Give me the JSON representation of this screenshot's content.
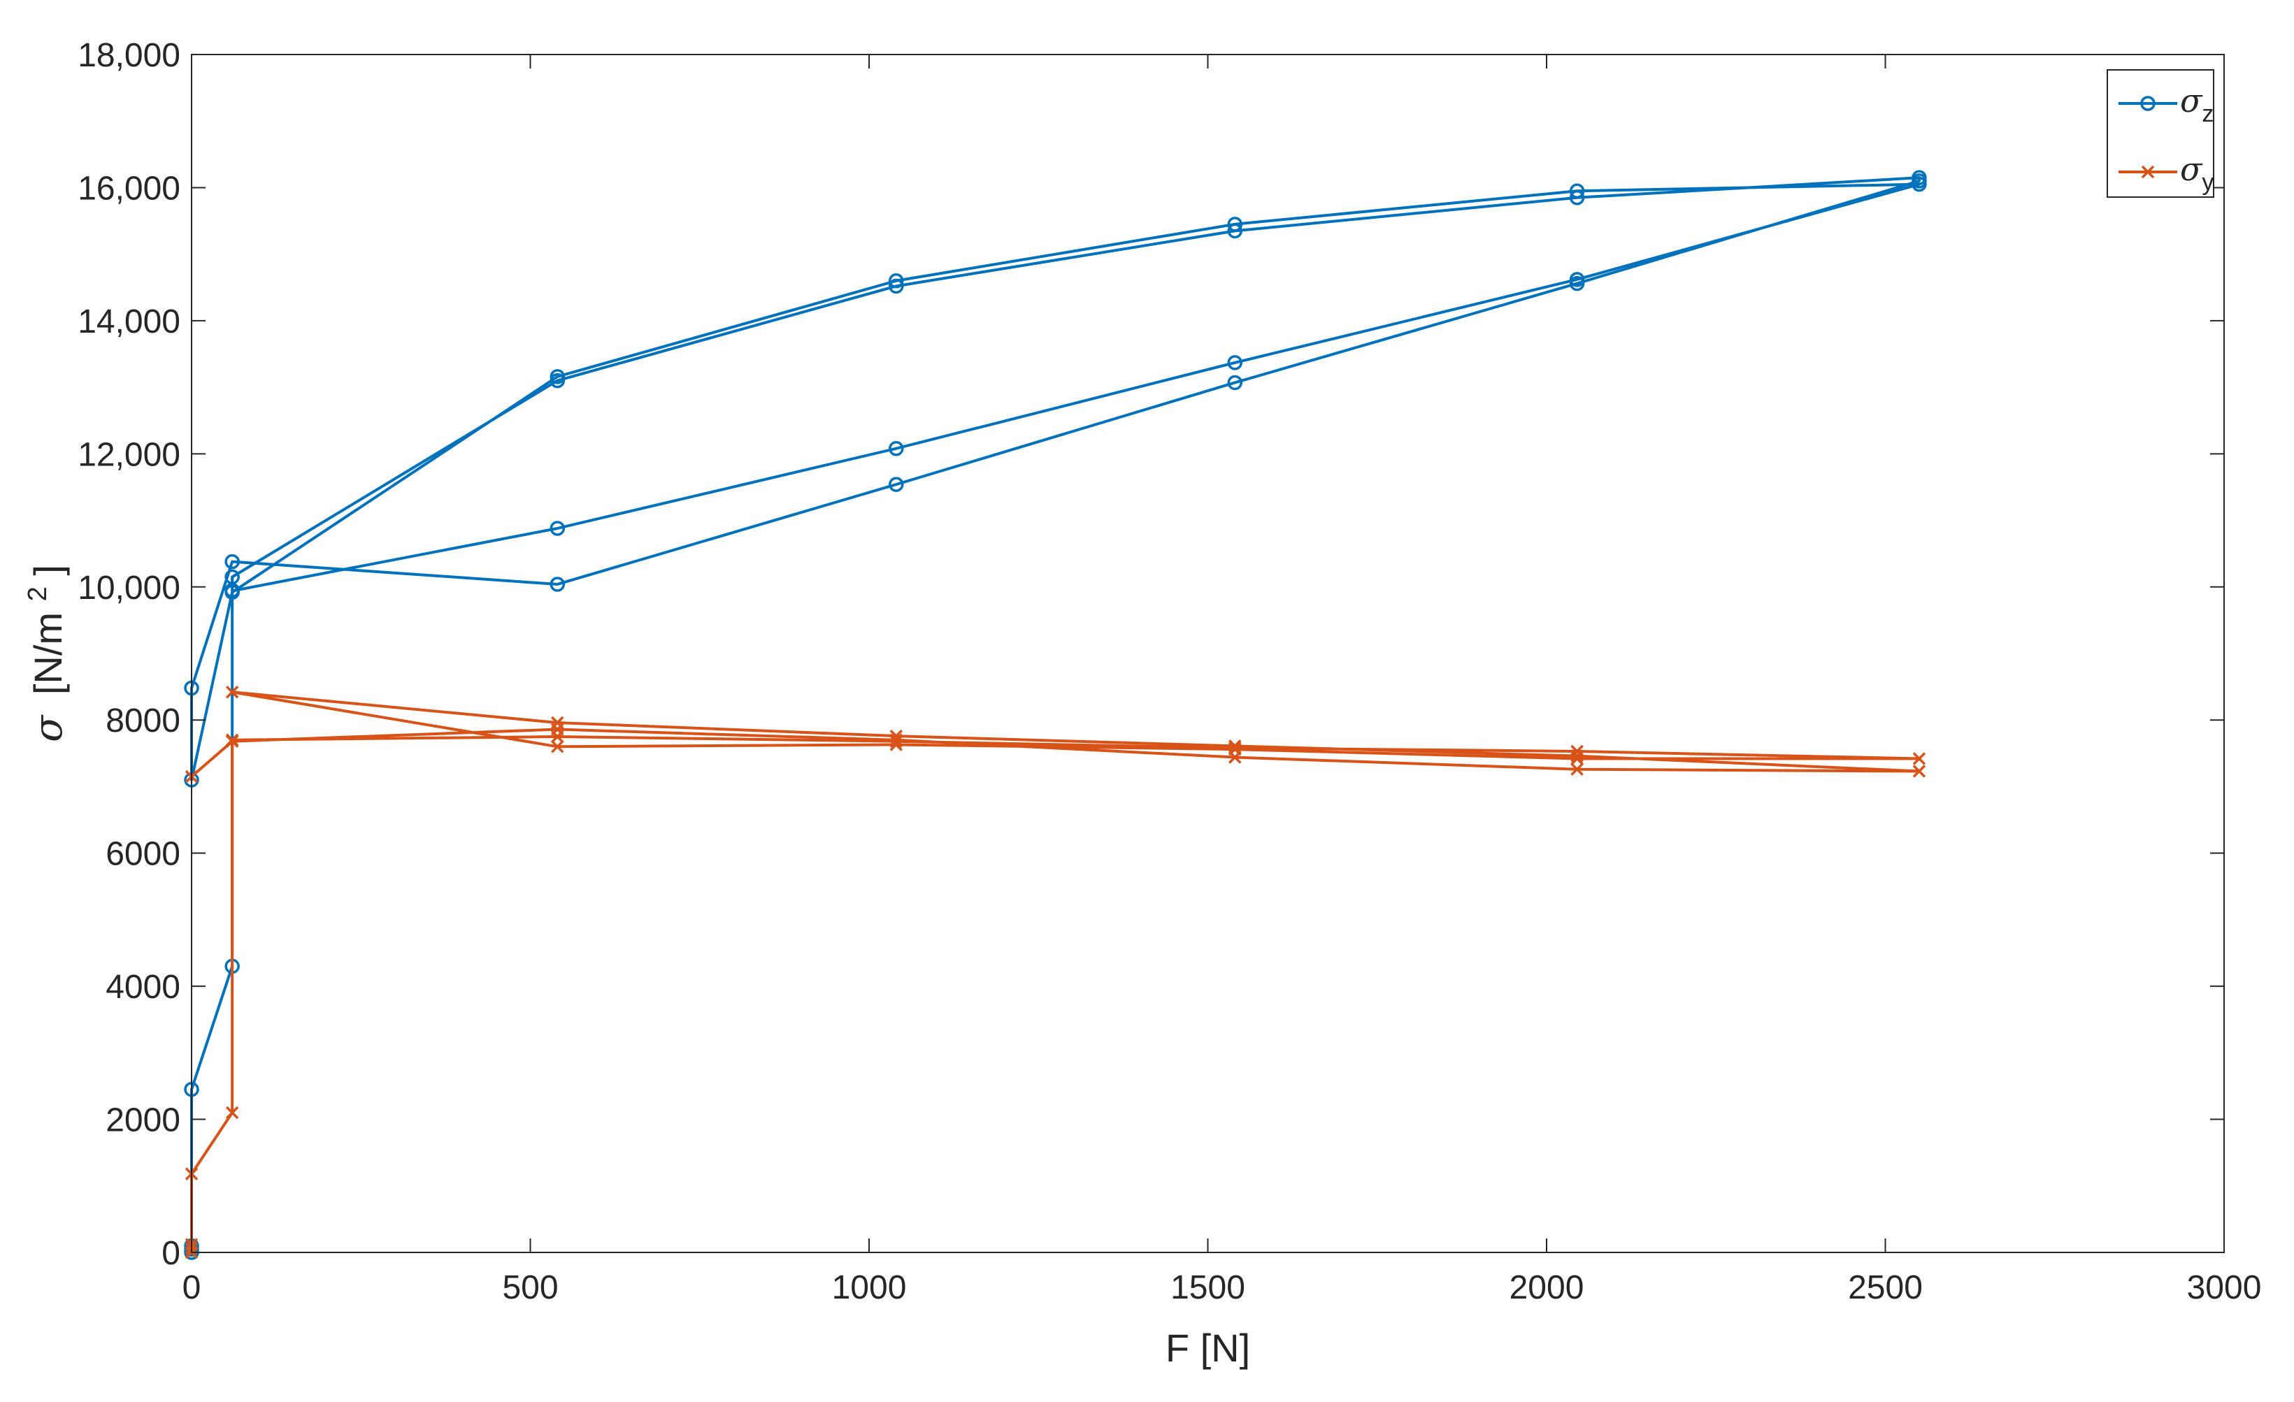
{
  "chart_data": {
    "type": "line",
    "xlabel": "F [N]",
    "ylabel": "σ [N/m²]",
    "ylabel_parts": {
      "prefix": "σ",
      "unit": "[N/m",
      "exp": "2",
      "close": "]"
    },
    "xlim": [
      0,
      3000
    ],
    "ylim": [
      0,
      18000
    ],
    "x_ticks": [
      0,
      500,
      1000,
      1500,
      2000,
      2500,
      3000
    ],
    "x_tick_labels": [
      "0",
      "500",
      "1000",
      "1500",
      "2000",
      "2500",
      "3000"
    ],
    "y_ticks": [
      0,
      2000,
      4000,
      6000,
      8000,
      10000,
      12000,
      14000,
      16000,
      18000
    ],
    "y_tick_labels": [
      "0",
      "2000",
      "4000",
      "6000",
      "8000",
      "10,000",
      "12,000",
      "14,000",
      "16,000",
      "18,000"
    ],
    "grid": false,
    "legend_position": "top-right",
    "series": [
      {
        "name": "σz",
        "legend_symbol": "σ",
        "legend_sub": "z",
        "color": "#0072BD",
        "marker": "circle",
        "points": [
          [
            0,
            0
          ],
          [
            0,
            50
          ],
          [
            0,
            100
          ],
          [
            0,
            2450
          ],
          [
            60,
            4300
          ],
          [
            60,
            9950
          ],
          [
            60,
            10150
          ],
          [
            540,
            13100
          ],
          [
            1040,
            14520
          ],
          [
            1540,
            15350
          ],
          [
            2045,
            15850
          ],
          [
            2550,
            16150
          ],
          [
            2550,
            16100
          ],
          [
            2045,
            14560
          ],
          [
            1540,
            13070
          ],
          [
            1040,
            11540
          ],
          [
            540,
            10040
          ],
          [
            60,
            10380
          ],
          [
            0,
            8480
          ],
          [
            0,
            7100
          ],
          [
            60,
            9920
          ],
          [
            540,
            13160
          ],
          [
            1040,
            14600
          ],
          [
            1540,
            15450
          ],
          [
            2045,
            15950
          ],
          [
            2550,
            16050
          ],
          [
            2045,
            14620
          ],
          [
            1540,
            13370
          ],
          [
            1040,
            12080
          ],
          [
            540,
            10880
          ],
          [
            60,
            9940
          ]
        ]
      },
      {
        "name": "σy",
        "legend_symbol": "σ",
        "legend_sub": "y",
        "color": "#D95319",
        "marker": "x",
        "points": [
          [
            0,
            0
          ],
          [
            0,
            60
          ],
          [
            0,
            120
          ],
          [
            0,
            1180
          ],
          [
            60,
            2100
          ],
          [
            60,
            7700
          ],
          [
            540,
            7750
          ],
          [
            1040,
            7680
          ],
          [
            1540,
            7580
          ],
          [
            2045,
            7530
          ],
          [
            2550,
            7420
          ],
          [
            2045,
            7420
          ],
          [
            1540,
            7560
          ],
          [
            1040,
            7630
          ],
          [
            540,
            7600
          ],
          [
            60,
            8420
          ],
          [
            540,
            7960
          ],
          [
            1040,
            7760
          ],
          [
            1540,
            7610
          ],
          [
            2045,
            7460
          ],
          [
            2550,
            7230
          ],
          [
            2045,
            7260
          ],
          [
            1540,
            7440
          ],
          [
            1040,
            7700
          ],
          [
            540,
            7860
          ],
          [
            60,
            7680
          ],
          [
            0,
            7150
          ]
        ]
      }
    ]
  }
}
